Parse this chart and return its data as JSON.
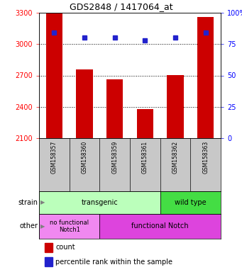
{
  "title": "GDS2848 / 1417064_at",
  "samples": [
    "GSM158357",
    "GSM158360",
    "GSM158359",
    "GSM158361",
    "GSM158362",
    "GSM158363"
  ],
  "bar_values": [
    3295,
    2760,
    2660,
    2380,
    2700,
    3260
  ],
  "percentile_values": [
    84,
    80,
    80,
    78,
    80,
    84
  ],
  "ylim_left": [
    2100,
    3300
  ],
  "ylim_right": [
    0,
    100
  ],
  "yticks_left": [
    2100,
    2400,
    2700,
    3000,
    3300
  ],
  "yticks_right": [
    0,
    25,
    50,
    75,
    100
  ],
  "ytick_right_labels": [
    "0",
    "25",
    "50",
    "75",
    "100%"
  ],
  "bar_color": "#cc0000",
  "dot_color": "#2222cc",
  "bar_width": 0.55,
  "strain_color_transgenic": "#bbffbb",
  "strain_color_wildtype": "#44dd44",
  "other_color_nofunc": "#f088f0",
  "other_color_func": "#dd44dd",
  "tick_bg_color": "#c8c8c8",
  "legend_count_color": "#cc0000",
  "legend_pct_color": "#2222cc",
  "legend_items": [
    "count",
    "percentile rank within the sample"
  ]
}
